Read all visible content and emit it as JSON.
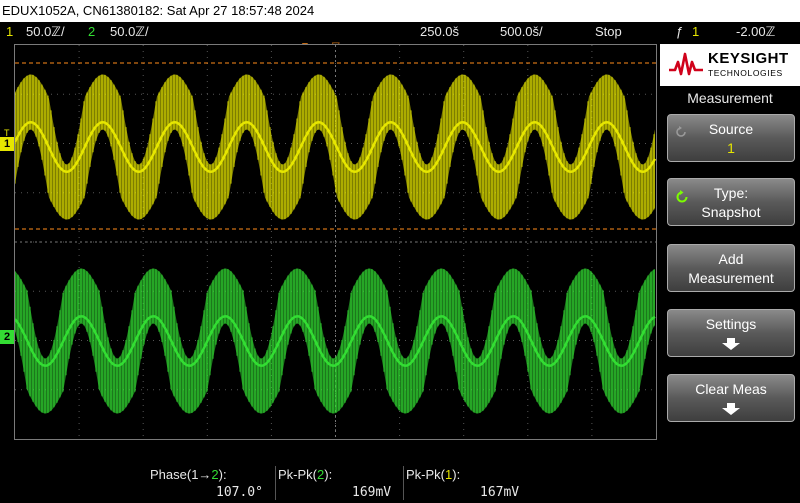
{
  "title_bar": {
    "text": "EDUX1052A, CN61380182: Sat Apr 27 18:57:48 2024"
  },
  "top_bar": {
    "ch1_num": "1",
    "ch1_scale": "50.0ℤ/",
    "ch2_num": "2",
    "ch2_scale": "50.0ℤ/",
    "time_delay": "250.0š",
    "time_scale": "500.0š/",
    "run_state": "Stop",
    "trigger_icon": "ƒ",
    "trigger_channel": "1",
    "trigger_level": "-2.00ℤ"
  },
  "screen": {
    "ch1_label": "1",
    "ch2_label": "2",
    "trigger_label": "T"
  },
  "side_panel": {
    "brand": "KEYSIGHT",
    "brand_sub": "TECHNOLOGIES",
    "menu_title": "Measurement",
    "softkeys": [
      {
        "label": "Source",
        "value": "1"
      },
      {
        "label": "Type:",
        "value": "Snapshot"
      },
      {
        "label": "Add",
        "value": "Measurement"
      },
      {
        "label": "Settings",
        "value": ""
      },
      {
        "label": "Clear Meas",
        "value": ""
      }
    ]
  },
  "measurements": [
    {
      "name_prefix": "Phase(1→",
      "name_ch": "2",
      "name_suffix": "):",
      "value": "107.0°"
    },
    {
      "name_prefix": "Pk-Pk(",
      "name_ch": "2",
      "name_suffix": "):",
      "value": "169mV"
    },
    {
      "name_prefix": "Pk-Pk(",
      "name_ch": "1",
      "name_suffix": "):",
      "value": "167mV"
    }
  ],
  "colors": {
    "ch1": "#e6e600",
    "ch2": "#33dd33",
    "cursor": "#ff8c1a",
    "grid": "#555555"
  }
}
